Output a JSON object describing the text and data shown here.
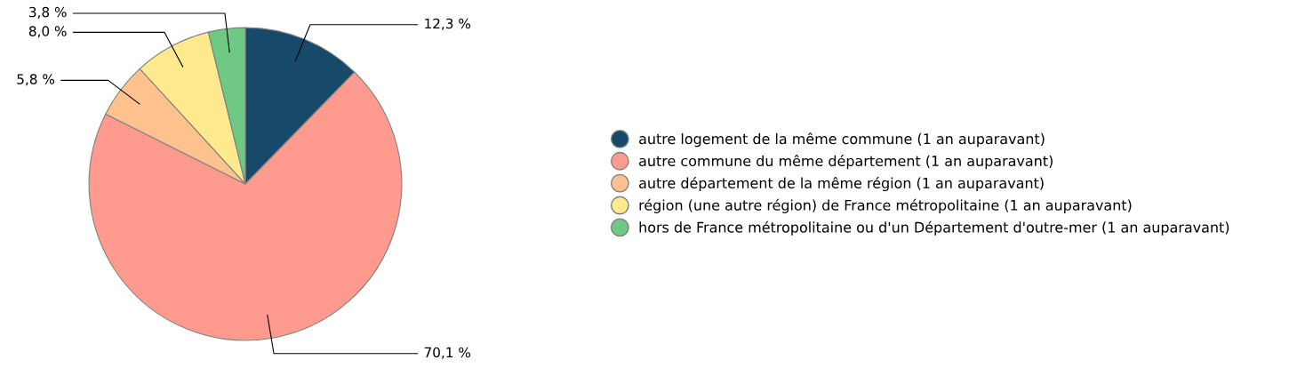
{
  "chart_data": {
    "type": "pie",
    "categories": [
      "autre logement de la même commune (1 an auparavant)",
      "autre commune du même département (1 an auparavant)",
      "autre département de la même région (1 an auparavant)",
      "région (une autre région) de France métropolitaine (1 an auparavant)",
      "hors de France métropolitaine ou d'un Département d'outre-mer (1 an auparavant)"
    ],
    "values": [
      12.3,
      70.1,
      5.8,
      8.0,
      3.8
    ],
    "colors": [
      "#174a6a",
      "#ff9a8f",
      "#ffc28f",
      "#ffe98f",
      "#6fc985"
    ],
    "value_labels": [
      "12,3 %",
      "70,1 %",
      "5,8 %",
      "8,0 %",
      "3,8 %"
    ],
    "legend": "right"
  }
}
